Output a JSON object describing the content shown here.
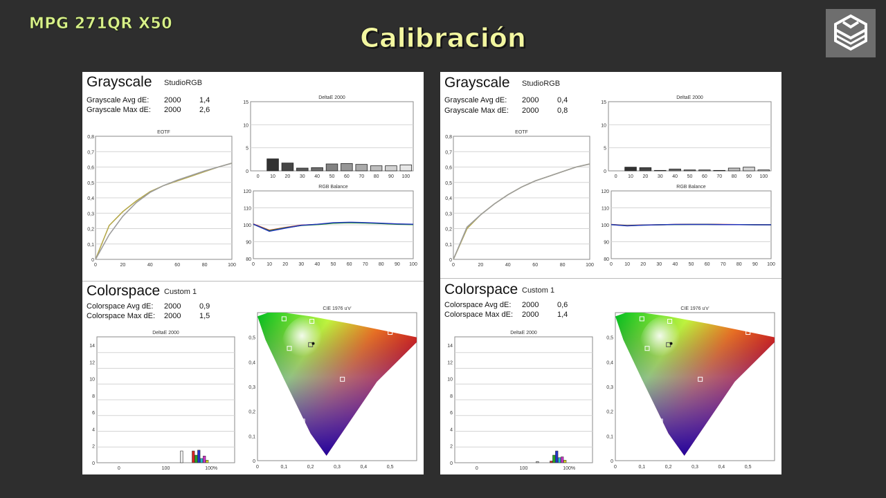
{
  "header": {
    "model": "MPG 271QR X50",
    "title": "Calibración",
    "logo_icon": "cube-logo-icon"
  },
  "panels": [
    {
      "grayscale": {
        "title": "Grayscale",
        "mode": "StudioRGB",
        "avg_label": "Grayscale Avg dE:",
        "avg_std": "2000",
        "avg_value": "1,4",
        "max_label": "Grayscale Max dE:",
        "max_std": "2000",
        "max_value": "2,6"
      },
      "colorspace": {
        "title": "Colorspace",
        "mode": "Custom 1",
        "avg_label": "Colorspace Avg dE:",
        "avg_std": "2000",
        "avg_value": "0,9",
        "max_label": "Colorspace Max dE:",
        "max_std": "2000",
        "max_value": "1,5"
      }
    },
    {
      "grayscale": {
        "title": "Grayscale",
        "mode": "StudioRGB",
        "avg_label": "Grayscale Avg dE:",
        "avg_std": "2000",
        "avg_value": "0,4",
        "max_label": "Grayscale Max dE:",
        "max_std": "2000",
        "max_value": "0,8"
      },
      "colorspace": {
        "title": "Colorspace",
        "mode": "Custom 1",
        "avg_label": "Colorspace Avg dE:",
        "avg_std": "2000",
        "avg_value": "0,6",
        "max_label": "Colorspace Max dE:",
        "max_std": "2000",
        "max_value": "1,4"
      }
    }
  ],
  "chart_data": [
    {
      "type": "line",
      "title": "EOTF",
      "x": [
        0,
        10,
        20,
        30,
        40,
        50,
        60,
        70,
        80,
        90,
        100
      ],
      "xlim": [
        0,
        100
      ],
      "ylim": [
        0,
        0.8
      ],
      "xticks": [
        "0",
        "20",
        "40",
        "60",
        "80",
        "100"
      ],
      "yticks": [
        "0",
        "0,1",
        "0,2",
        "0,3",
        "0,4",
        "0,5",
        "0,6",
        "0,7",
        "0,8"
      ],
      "series": [
        {
          "color": "#b5a84a",
          "values": [
            0,
            0.22,
            0.31,
            0.38,
            0.44,
            0.48,
            0.51,
            0.54,
            0.57,
            0.6,
            0.625
          ]
        },
        {
          "color": "#9c9c9c",
          "values": [
            0,
            0.16,
            0.28,
            0.37,
            0.435,
            0.48,
            0.515,
            0.545,
            0.575,
            0.6,
            0.625
          ]
        }
      ]
    },
    {
      "type": "bar",
      "title": "DeltaE 2000",
      "categories": [
        "0",
        "10",
        "20",
        "30",
        "40",
        "50",
        "60",
        "70",
        "80",
        "90",
        "100"
      ],
      "values": [
        0,
        2.6,
        1.7,
        0.6,
        0.7,
        1.5,
        1.6,
        1.4,
        1.1,
        1.1,
        1.3
      ],
      "ylim": [
        0,
        15
      ],
      "yticks": [
        "0",
        "5",
        "10",
        "15"
      ]
    },
    {
      "type": "line",
      "title": "RGB Balance",
      "x": [
        0,
        10,
        20,
        30,
        40,
        50,
        60,
        70,
        80,
        90,
        100
      ],
      "xlim": [
        0,
        100
      ],
      "ylim": [
        80,
        120
      ],
      "xticks": [
        "0",
        "10",
        "20",
        "30",
        "40",
        "50",
        "60",
        "70",
        "80",
        "90",
        "100"
      ],
      "yticks": [
        "80",
        "90",
        "100",
        "110",
        "120"
      ],
      "series": [
        {
          "color": "#cc2222",
          "values": [
            100.5,
            96.8,
            98.4,
            99.8,
            100.2,
            101.0,
            101.3,
            101.1,
            100.8,
            100.4,
            100.2
          ]
        },
        {
          "color": "#22aa22",
          "values": [
            100.3,
            96.5,
            98.2,
            99.6,
            100.1,
            100.9,
            101.2,
            101.0,
            100.7,
            100.3,
            100.1
          ]
        },
        {
          "color": "#2233bb",
          "values": [
            100.4,
            96.2,
            98.0,
            99.7,
            100.3,
            101.2,
            101.5,
            101.3,
            100.9,
            100.5,
            100.3
          ]
        }
      ]
    },
    {
      "type": "bar",
      "title": "DeltaE 2000",
      "xticks": [
        "0",
        "100",
        "100%"
      ],
      "ylim": [
        0,
        15
      ],
      "yticks": [
        "0",
        "2",
        "4",
        "6",
        "8",
        "10",
        "12",
        "14"
      ],
      "bars": [
        {
          "x": 123,
          "value": 1.4,
          "color": "#eeeeee"
        },
        {
          "x": 140,
          "value": 1.4,
          "color": "#dd2222"
        },
        {
          "x": 144,
          "value": 0.9,
          "color": "#22aa22"
        },
        {
          "x": 148,
          "value": 1.5,
          "color": "#2233cc"
        },
        {
          "x": 152,
          "value": 0.5,
          "color": "#22bbcc"
        },
        {
          "x": 156,
          "value": 0.8,
          "color": "#cc33cc"
        },
        {
          "x": 160,
          "value": 0.3,
          "color": "#dddd22"
        }
      ]
    },
    {
      "type": "scatter",
      "title": "CIE 1976 u'v'",
      "xlim": [
        0,
        0.6
      ],
      "ylim": [
        0,
        0.6
      ],
      "xticks": [
        "0",
        "0,1",
        "0,2",
        "0,3",
        "0,4",
        "0,5"
      ],
      "yticks": [
        "0",
        "0,1",
        "0,2",
        "0,3",
        "0,4",
        "0,5"
      ],
      "points": [
        {
          "u": 0.1,
          "v": 0.575,
          "color": "#22aa22"
        },
        {
          "u": 0.205,
          "v": 0.565,
          "color": "#dddd22"
        },
        {
          "u": 0.5,
          "v": 0.52,
          "color": "#dd2222"
        },
        {
          "u": 0.12,
          "v": 0.455,
          "color": "#22bbcc"
        },
        {
          "u": 0.2,
          "v": 0.47,
          "color": "#ffffff"
        },
        {
          "u": 0.32,
          "v": 0.33,
          "color": "#cc33cc"
        },
        {
          "u": 0.17,
          "v": 0.16,
          "color": "#2233cc"
        }
      ],
      "white_target": {
        "u": 0.21,
        "v": 0.475
      }
    },
    {
      "type": "line",
      "title": "EOTF",
      "x": [
        0,
        10,
        20,
        30,
        40,
        50,
        60,
        70,
        80,
        90,
        100
      ],
      "xlim": [
        0,
        100
      ],
      "ylim": [
        0,
        0.8
      ],
      "xticks": [
        "0",
        "20",
        "40",
        "60",
        "80",
        "100"
      ],
      "yticks": [
        "0",
        "0,1",
        "0,2",
        "0,3",
        "0,4",
        "0,5",
        "0,6",
        "0,7",
        "0,8"
      ],
      "series": [
        {
          "color": "#b5a84a",
          "values": [
            0,
            0.2,
            0.29,
            0.36,
            0.42,
            0.47,
            0.51,
            0.54,
            0.57,
            0.6,
            0.62
          ]
        },
        {
          "color": "#9c9c9c",
          "values": [
            0,
            0.21,
            0.29,
            0.36,
            0.42,
            0.47,
            0.51,
            0.54,
            0.57,
            0.6,
            0.62
          ]
        }
      ]
    },
    {
      "type": "bar",
      "title": "DeltaE 2000",
      "categories": [
        "0",
        "10",
        "20",
        "30",
        "40",
        "50",
        "60",
        "70",
        "80",
        "90",
        "100"
      ],
      "values": [
        0,
        0.8,
        0.7,
        0.1,
        0.4,
        0.2,
        0.2,
        0.1,
        0.6,
        0.8,
        0.2
      ],
      "ylim": [
        0,
        15
      ],
      "yticks": [
        "0",
        "5",
        "10",
        "15"
      ]
    },
    {
      "type": "line",
      "title": "RGB Balance",
      "x": [
        0,
        10,
        20,
        30,
        40,
        50,
        60,
        70,
        80,
        90,
        100
      ],
      "xlim": [
        0,
        100
      ],
      "ylim": [
        80,
        120
      ],
      "xticks": [
        "0",
        "10",
        "20",
        "30",
        "40",
        "50",
        "60",
        "70",
        "80",
        "90",
        "100"
      ],
      "yticks": [
        "80",
        "90",
        "100",
        "110",
        "120"
      ],
      "series": [
        {
          "color": "#cc2222",
          "values": [
            100.2,
            99.6,
            99.9,
            100.0,
            100.2,
            100.3,
            100.3,
            100.2,
            100.1,
            100.1,
            100.0
          ]
        },
        {
          "color": "#22aa22",
          "values": [
            100.1,
            99.5,
            99.8,
            100.0,
            100.1,
            100.2,
            100.2,
            100.1,
            100.1,
            100.0,
            100.0
          ]
        },
        {
          "color": "#2233bb",
          "values": [
            100.1,
            99.4,
            99.8,
            100.0,
            100.2,
            100.2,
            100.2,
            100.1,
            100.1,
            100.0,
            100.0
          ]
        }
      ]
    },
    {
      "type": "bar",
      "title": "DeltaE 2000",
      "xticks": [
        "0",
        "100",
        "100%"
      ],
      "ylim": [
        0,
        15
      ],
      "yticks": [
        "0",
        "2",
        "4",
        "6",
        "8",
        "10",
        "12",
        "14"
      ],
      "bars": [
        {
          "x": 120,
          "value": 0.15,
          "color": "#cccccc"
        },
        {
          "x": 140,
          "value": 0.2,
          "color": "#dd2222"
        },
        {
          "x": 144,
          "value": 0.9,
          "color": "#22aa22"
        },
        {
          "x": 148,
          "value": 1.4,
          "color": "#2233cc"
        },
        {
          "x": 152,
          "value": 0.6,
          "color": "#22bbcc"
        },
        {
          "x": 156,
          "value": 0.7,
          "color": "#cc33cc"
        },
        {
          "x": 160,
          "value": 0.3,
          "color": "#dddd22"
        }
      ]
    },
    {
      "type": "scatter",
      "title": "CIE 1976 u'v'",
      "xlim": [
        0,
        0.6
      ],
      "ylim": [
        0,
        0.6
      ],
      "xticks": [
        "0",
        "0,1",
        "0,2",
        "0,3",
        "0,4",
        "0,5"
      ],
      "yticks": [
        "0",
        "0,1",
        "0,2",
        "0,3",
        "0,4",
        "0,5"
      ],
      "points": [
        {
          "u": 0.1,
          "v": 0.575,
          "color": "#22aa22"
        },
        {
          "u": 0.205,
          "v": 0.565,
          "color": "#dddd22"
        },
        {
          "u": 0.5,
          "v": 0.52,
          "color": "#dd2222"
        },
        {
          "u": 0.12,
          "v": 0.455,
          "color": "#22bbcc"
        },
        {
          "u": 0.2,
          "v": 0.47,
          "color": "#ffffff"
        },
        {
          "u": 0.32,
          "v": 0.33,
          "color": "#cc33cc"
        },
        {
          "u": 0.17,
          "v": 0.16,
          "color": "#2233cc"
        }
      ],
      "white_target": {
        "u": 0.21,
        "v": 0.475
      }
    }
  ]
}
